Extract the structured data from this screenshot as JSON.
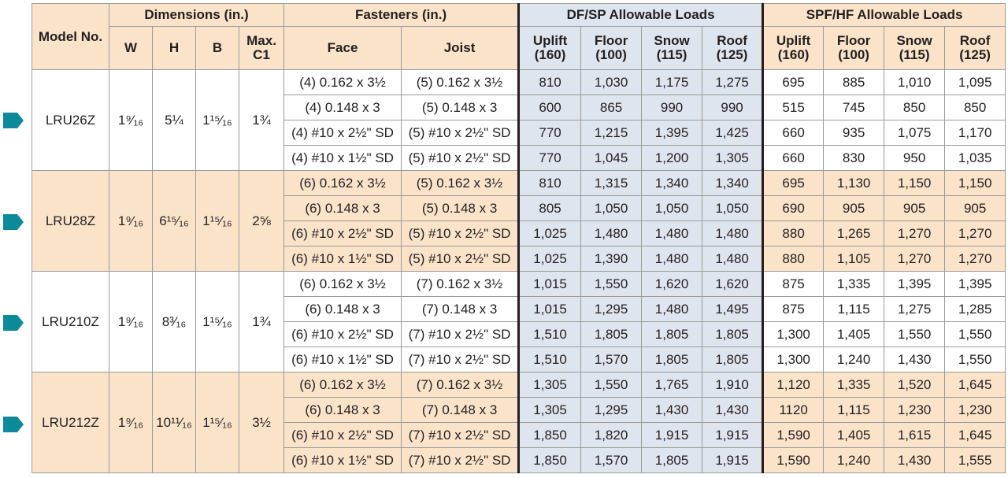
{
  "header": {
    "model_no": "Model No.",
    "dimensions": "Dimensions (in.)",
    "fasteners": "Fasteners (in.)",
    "dfsp": "DF/SP Allowable Loads",
    "spfhf": "SPF/HF Allowable Loads",
    "dim_cols": [
      "W",
      "H",
      "B",
      "Max. C1"
    ],
    "fast_cols": [
      "Face",
      "Joist"
    ],
    "load_cols": [
      "Uplift (160)",
      "Floor (100)",
      "Snow (115)",
      "Roof (125)"
    ]
  },
  "marker_color": "#0d8a9a",
  "models": [
    {
      "name": "LRU26Z",
      "W": "1⁹⁄₁₆",
      "H": "5¼",
      "B": "1¹⁵⁄₁₆",
      "C1": "1¾",
      "rows": [
        {
          "face": "(4) 0.162 x 3½",
          "joist": "(5) 0.162 x 3½",
          "df": [
            "810",
            "1,030",
            "1,175",
            "1,275"
          ],
          "spf": [
            "695",
            "885",
            "1,010",
            "1,095"
          ]
        },
        {
          "face": "(4) 0.148 x 3",
          "joist": "(5) 0.148 x 3",
          "df": [
            "600",
            "865",
            "990",
            "990"
          ],
          "spf": [
            "515",
            "745",
            "850",
            "850"
          ]
        },
        {
          "face": "(4) #10 x 2½\" SD",
          "joist": "(5) #10 x 2½\" SD",
          "df": [
            "770",
            "1,215",
            "1,395",
            "1,425"
          ],
          "spf": [
            "660",
            "935",
            "1,075",
            "1,170"
          ]
        },
        {
          "face": "(4) #10 x 1½\" SD",
          "joist": "(5) #10 x 2½\" SD",
          "df": [
            "770",
            "1,045",
            "1,200",
            "1,305"
          ],
          "spf": [
            "660",
            "830",
            "950",
            "1,035"
          ]
        }
      ]
    },
    {
      "name": "LRU28Z",
      "W": "1⁹⁄₁₆",
      "H": "6¹⁵⁄₁₆",
      "B": "1¹⁵⁄₁₆",
      "C1": "2⅝",
      "rows": [
        {
          "face": "(6) 0.162 x 3½",
          "joist": "(5) 0.162 x 3½",
          "df": [
            "810",
            "1,315",
            "1,340",
            "1,340"
          ],
          "spf": [
            "695",
            "1,130",
            "1,150",
            "1,150"
          ]
        },
        {
          "face": "(6) 0.148 x 3",
          "joist": "(5) 0.148 x 3",
          "df": [
            "805",
            "1,050",
            "1,050",
            "1,050"
          ],
          "spf": [
            "690",
            "905",
            "905",
            "905"
          ]
        },
        {
          "face": "(6) #10 x 2½\" SD",
          "joist": "(5) #10 x 2½\" SD",
          "df": [
            "1,025",
            "1,480",
            "1,480",
            "1,480"
          ],
          "spf": [
            "880",
            "1,265",
            "1,270",
            "1,270"
          ]
        },
        {
          "face": "(6) #10 x 1½\" SD",
          "joist": "(5) #10 x 2½\" SD",
          "df": [
            "1,025",
            "1,390",
            "1,480",
            "1,480"
          ],
          "spf": [
            "880",
            "1,105",
            "1,270",
            "1,270"
          ]
        }
      ]
    },
    {
      "name": "LRU210Z",
      "W": "1⁹⁄₁₆",
      "H": "8³⁄₁₆",
      "B": "1¹⁵⁄₁₆",
      "C1": "1¾",
      "rows": [
        {
          "face": "(6) 0.162 x 3½",
          "joist": "(7) 0.162 x 3½",
          "df": [
            "1,015",
            "1,550",
            "1,620",
            "1,620"
          ],
          "spf": [
            "875",
            "1,335",
            "1,395",
            "1,395"
          ]
        },
        {
          "face": "(6) 0.148 x 3",
          "joist": "(7) 0.148 x 3",
          "df": [
            "1,015",
            "1,295",
            "1,480",
            "1,495"
          ],
          "spf": [
            "875",
            "1,115",
            "1,275",
            "1,285"
          ]
        },
        {
          "face": "(6) #10 x 2½\" SD",
          "joist": "(7) #10 x 2½\" SD",
          "df": [
            "1,510",
            "1,805",
            "1,805",
            "1,805"
          ],
          "spf": [
            "1,300",
            "1,405",
            "1,550",
            "1,550"
          ]
        },
        {
          "face": "(6) #10 x 1½\" SD",
          "joist": "(7) #10 x 2½\" SD",
          "df": [
            "1,510",
            "1,570",
            "1,805",
            "1,805"
          ],
          "spf": [
            "1,300",
            "1,240",
            "1,430",
            "1,550"
          ]
        }
      ]
    },
    {
      "name": "LRU212Z",
      "W": "1⁹⁄₁₆",
      "H": "10¹¹⁄₁₆",
      "B": "1¹⁵⁄₁₆",
      "C1": "3½",
      "rows": [
        {
          "face": "(6) 0.162 x 3½",
          "joist": "(7) 0.162 x 3½",
          "df": [
            "1,305",
            "1,550",
            "1,765",
            "1,910"
          ],
          "spf": [
            "1,120",
            "1,335",
            "1,520",
            "1,645"
          ]
        },
        {
          "face": "(6) 0.148 x 3",
          "joist": "(7) 0.148 x 3",
          "df": [
            "1,305",
            "1,295",
            "1,430",
            "1,430"
          ],
          "spf": [
            "1120",
            "1,115",
            "1,230",
            "1,230"
          ]
        },
        {
          "face": "(6) #10 x 2½\" SD",
          "joist": "(7) #10 x 2½\" SD",
          "df": [
            "1,850",
            "1,820",
            "1,915",
            "1,915"
          ],
          "spf": [
            "1,590",
            "1,405",
            "1,615",
            "1,645"
          ]
        },
        {
          "face": "(6) #10 x 1½\" SD",
          "joist": "(7) #10 x 2½\" SD",
          "df": [
            "1,850",
            "1,570",
            "1,805",
            "1,915"
          ],
          "spf": [
            "1,590",
            "1,240",
            "1,430",
            "1,555"
          ]
        }
      ]
    }
  ]
}
